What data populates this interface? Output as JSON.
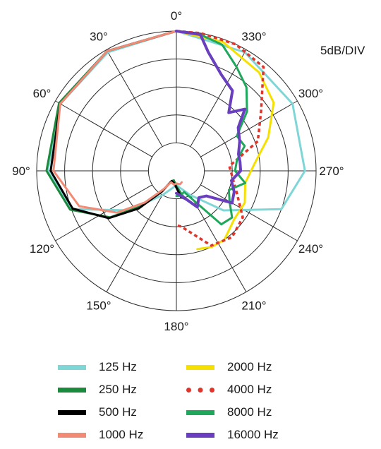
{
  "chart_data": {
    "type": "polar",
    "scale_label": "5dB/DIV",
    "angle_labels": [
      "0°",
      "30°",
      "60°",
      "90°",
      "120°",
      "150°",
      "180°",
      "210°",
      "240°",
      "270°",
      "300°",
      "330°"
    ],
    "angle_values": [
      0,
      30,
      60,
      90,
      120,
      150,
      180,
      210,
      240,
      270,
      300,
      330
    ],
    "rings": 5,
    "colors": {
      "125 Hz": "#7fd6d6",
      "250 Hz": "#1b8a3c",
      "500 Hz": "#000000",
      "1000 Hz": "#f28b76",
      "2000 Hz": "#f5e000",
      "4000 Hz": "#e0352b",
      "8000 Hz": "#1fa85c",
      "16000 Hz": "#6a3fbf"
    },
    "series": [
      {
        "name": "125 Hz",
        "style": "solid",
        "points": [
          [
            0,
            5.0
          ],
          [
            30,
            4.9
          ],
          [
            60,
            4.8
          ],
          [
            90,
            4.6
          ],
          [
            110,
            4.0
          ],
          [
            130,
            2.2
          ],
          [
            150,
            1.0
          ],
          [
            170,
            0.6
          ],
          [
            180,
            0.5
          ],
          [
            190,
            0.6
          ],
          [
            210,
            1.0
          ],
          [
            230,
            2.2
          ],
          [
            250,
            4.0
          ],
          [
            270,
            4.6
          ],
          [
            300,
            4.8
          ],
          [
            330,
            4.9
          ],
          [
            360,
            5.0
          ]
        ]
      },
      {
        "name": "250 Hz",
        "style": "solid",
        "points": [
          [
            0,
            5.0
          ],
          [
            30,
            4.95
          ],
          [
            60,
            4.85
          ],
          [
            90,
            4.65
          ],
          [
            110,
            4.05
          ],
          [
            125,
            2.9
          ],
          [
            135,
            1.8
          ],
          [
            145,
            0.9
          ],
          [
            155,
            0.4
          ],
          [
            165,
            0.35
          ],
          [
            180,
            0.55
          ],
          [
            195,
            0.95
          ],
          [
            205,
            1.25
          ]
        ]
      },
      {
        "name": "500 Hz",
        "style": "solid",
        "points": [
          [
            0,
            5.0
          ],
          [
            30,
            4.95
          ],
          [
            60,
            4.8
          ],
          [
            90,
            4.5
          ],
          [
            110,
            3.95
          ],
          [
            125,
            2.95
          ],
          [
            135,
            1.9
          ],
          [
            145,
            0.9
          ],
          [
            155,
            0.4
          ],
          [
            170,
            0.45
          ],
          [
            180,
            0.6
          ],
          [
            190,
            0.95
          ],
          [
            200,
            1.1
          ]
        ]
      },
      {
        "name": "1000 Hz",
        "style": "solid",
        "points": [
          [
            0,
            5.0
          ],
          [
            30,
            4.95
          ],
          [
            60,
            4.8
          ],
          [
            90,
            4.4
          ],
          [
            110,
            3.7
          ],
          [
            125,
            2.6
          ],
          [
            135,
            1.6
          ],
          [
            145,
            0.8
          ],
          [
            155,
            0.45
          ],
          [
            170,
            0.5
          ],
          [
            180,
            0.45
          ],
          [
            195,
            0.5
          ],
          [
            205,
            0.45
          ]
        ]
      },
      {
        "name": "2000 Hz",
        "style": "solid",
        "points": [
          [
            0,
            5.0
          ],
          [
            340,
            4.9
          ],
          [
            320,
            4.6
          ],
          [
            305,
            4.25
          ],
          [
            290,
            3.5
          ],
          [
            275,
            2.8
          ],
          [
            260,
            2.5
          ],
          [
            245,
            2.7
          ],
          [
            230,
            2.7
          ],
          [
            215,
            3.0
          ],
          [
            205,
            3.0
          ],
          [
            195,
            2.9
          ]
        ]
      },
      {
        "name": "4000 Hz",
        "style": "dashed",
        "points": [
          [
            0,
            5.0
          ],
          [
            350,
            5.0
          ],
          [
            335,
            5.0
          ],
          [
            320,
            4.85
          ],
          [
            305,
            3.7
          ],
          [
            290,
            3.1
          ],
          [
            275,
            1.9
          ],
          [
            265,
            2.0
          ],
          [
            250,
            2.3
          ],
          [
            235,
            2.9
          ],
          [
            220,
            3.1
          ],
          [
            205,
            2.95
          ],
          [
            185,
            2.0
          ],
          [
            180,
            1.95
          ]
        ]
      },
      {
        "name": "8000 Hz",
        "style": "solid",
        "points": [
          [
            0,
            5.0
          ],
          [
            350,
            4.95
          ],
          [
            340,
            4.8
          ],
          [
            330,
            4.3
          ],
          [
            320,
            3.9
          ],
          [
            310,
            3.3
          ],
          [
            300,
            2.5
          ],
          [
            290,
            2.6
          ],
          [
            280,
            2.2
          ],
          [
            270,
            2.1
          ],
          [
            260,
            2.5
          ],
          [
            250,
            2.0
          ],
          [
            240,
            2.2
          ],
          [
            230,
            2.6
          ],
          [
            220,
            2.5
          ],
          [
            210,
            1.2
          ],
          [
            200,
            0.8
          ],
          [
            190,
            0.9
          ],
          [
            180,
            0.9
          ]
        ]
      },
      {
        "name": "16000 Hz",
        "style": "solid",
        "points": [
          [
            0,
            5.0
          ],
          [
            350,
            4.95
          ],
          [
            345,
            4.4
          ],
          [
            335,
            3.8
          ],
          [
            325,
            3.5
          ],
          [
            318,
            2.8
          ],
          [
            312,
            3.3
          ],
          [
            305,
            2.7
          ],
          [
            295,
            2.5
          ],
          [
            285,
            2.3
          ],
          [
            278,
            2.3
          ],
          [
            270,
            2.3
          ],
          [
            260,
            2.0
          ],
          [
            250,
            2.2
          ],
          [
            240,
            2.3
          ],
          [
            230,
            1.4
          ],
          [
            220,
            1.25
          ],
          [
            210,
            1.5
          ],
          [
            200,
            1.1
          ],
          [
            190,
            0.9
          ],
          [
            180,
            0.8
          ]
        ]
      }
    ]
  },
  "legend": [
    {
      "label": "125 Hz",
      "color": "#7fd6d6",
      "style": "solid"
    },
    {
      "label": "2000 Hz",
      "color": "#f5e000",
      "style": "solid"
    },
    {
      "label": "250 Hz",
      "color": "#1b8a3c",
      "style": "solid"
    },
    {
      "label": "4000 Hz",
      "color": "#e0352b",
      "style": "dashed"
    },
    {
      "label": "500 Hz",
      "color": "#000000",
      "style": "solid"
    },
    {
      "label": "8000 Hz",
      "color": "#1fa85c",
      "style": "solid"
    },
    {
      "label": "1000 Hz",
      "color": "#f28b76",
      "style": "solid"
    },
    {
      "label": "16000 Hz",
      "color": "#6a3fbf",
      "style": "solid"
    }
  ]
}
